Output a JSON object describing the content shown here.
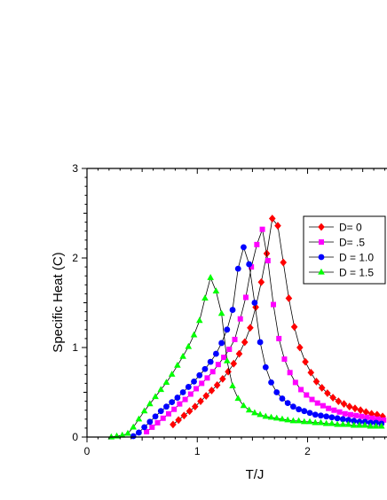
{
  "chart_data": {
    "type": "line",
    "title": "",
    "xlabel": "T/J",
    "ylabel": "Specific Heat (C)",
    "xlim": [
      0,
      2.72
    ],
    "ylim": [
      0,
      3
    ],
    "xticks": [
      0,
      1,
      2
    ],
    "xtick_labels": [
      "0",
      "1",
      "2"
    ],
    "yticks": [
      0,
      1,
      2,
      3
    ],
    "ytick_labels": [
      "0",
      "1",
      "2",
      "3"
    ],
    "grid": false,
    "legend_position": "upper-right",
    "series": [
      {
        "name": "D= 0",
        "color": "#ff0000",
        "marker": "diamond",
        "x": [
          0.78,
          0.83,
          0.88,
          0.93,
          0.98,
          1.03,
          1.08,
          1.13,
          1.18,
          1.23,
          1.28,
          1.33,
          1.38,
          1.43,
          1.48,
          1.53,
          1.58,
          1.63,
          1.68,
          1.73,
          1.78,
          1.83,
          1.88,
          1.93,
          1.98,
          2.03,
          2.08,
          2.13,
          2.18,
          2.23,
          2.28,
          2.33,
          2.38,
          2.43,
          2.48,
          2.53,
          2.58,
          2.63,
          2.68
        ],
        "y": [
          0.14,
          0.19,
          0.24,
          0.29,
          0.34,
          0.4,
          0.46,
          0.52,
          0.58,
          0.65,
          0.73,
          0.82,
          0.93,
          1.06,
          1.22,
          1.45,
          1.73,
          2.05,
          2.44,
          2.36,
          1.95,
          1.55,
          1.23,
          1.0,
          0.84,
          0.72,
          0.62,
          0.55,
          0.49,
          0.44,
          0.4,
          0.37,
          0.34,
          0.32,
          0.3,
          0.28,
          0.26,
          0.25,
          0.23
        ]
      },
      {
        "name": "D= .5",
        "color": "#ff00ff",
        "marker": "square",
        "x": [
          0.54,
          0.59,
          0.64,
          0.69,
          0.74,
          0.79,
          0.84,
          0.89,
          0.94,
          0.99,
          1.04,
          1.09,
          1.14,
          1.19,
          1.24,
          1.29,
          1.34,
          1.39,
          1.44,
          1.49,
          1.54,
          1.59,
          1.64,
          1.69,
          1.74,
          1.79,
          1.84,
          1.89,
          1.94,
          1.99,
          2.04,
          2.09,
          2.14,
          2.19,
          2.24,
          2.29,
          2.34,
          2.39,
          2.44,
          2.49,
          2.54,
          2.59,
          2.64,
          2.69
        ],
        "y": [
          0.06,
          0.11,
          0.16,
          0.21,
          0.26,
          0.31,
          0.37,
          0.42,
          0.48,
          0.54,
          0.6,
          0.66,
          0.73,
          0.81,
          0.89,
          0.98,
          1.09,
          1.32,
          1.56,
          1.9,
          2.15,
          2.32,
          1.97,
          1.48,
          1.1,
          0.87,
          0.72,
          0.61,
          0.53,
          0.47,
          0.42,
          0.38,
          0.35,
          0.32,
          0.3,
          0.28,
          0.26,
          0.25,
          0.24,
          0.23,
          0.22,
          0.21,
          0.2,
          0.19
        ]
      },
      {
        "name": "D = 1.0",
        "color": "#0000ff",
        "marker": "circle",
        "x": [
          0.42,
          0.47,
          0.52,
          0.57,
          0.62,
          0.67,
          0.72,
          0.77,
          0.82,
          0.87,
          0.92,
          0.97,
          1.02,
          1.07,
          1.12,
          1.17,
          1.22,
          1.27,
          1.32,
          1.37,
          1.42,
          1.47,
          1.52,
          1.57,
          1.62,
          1.67,
          1.72,
          1.77,
          1.82,
          1.87,
          1.92,
          1.97,
          2.02,
          2.07,
          2.12,
          2.17,
          2.22,
          2.27,
          2.32,
          2.37,
          2.42,
          2.47,
          2.52,
          2.57,
          2.62,
          2.67
        ],
        "y": [
          0.01,
          0.05,
          0.11,
          0.17,
          0.23,
          0.29,
          0.34,
          0.39,
          0.44,
          0.5,
          0.56,
          0.62,
          0.69,
          0.76,
          0.84,
          0.93,
          1.05,
          1.2,
          1.42,
          1.88,
          2.12,
          1.93,
          1.5,
          1.06,
          0.78,
          0.61,
          0.5,
          0.43,
          0.38,
          0.34,
          0.31,
          0.29,
          0.27,
          0.25,
          0.24,
          0.23,
          0.22,
          0.21,
          0.2,
          0.19,
          0.18,
          0.17,
          0.17,
          0.16,
          0.16,
          0.15
        ]
      },
      {
        "name": "D = 1.5",
        "color": "#00ff00",
        "marker": "triangle",
        "x": [
          0.22,
          0.27,
          0.32,
          0.37,
          0.42,
          0.47,
          0.52,
          0.57,
          0.62,
          0.67,
          0.72,
          0.77,
          0.82,
          0.87,
          0.92,
          0.97,
          1.02,
          1.07,
          1.12,
          1.17,
          1.22,
          1.27,
          1.32,
          1.37,
          1.42,
          1.47,
          1.52,
          1.57,
          1.62,
          1.67,
          1.72,
          1.77,
          1.82,
          1.87,
          1.92,
          1.97,
          2.02,
          2.07,
          2.12,
          2.17,
          2.22,
          2.27,
          2.32,
          2.37,
          2.42,
          2.47,
          2.52,
          2.57,
          2.62,
          2.67
        ],
        "y": [
          0.0,
          0.01,
          0.02,
          0.04,
          0.11,
          0.2,
          0.29,
          0.37,
          0.45,
          0.53,
          0.61,
          0.7,
          0.8,
          0.9,
          1.01,
          1.14,
          1.3,
          1.55,
          1.78,
          1.63,
          1.38,
          0.85,
          0.57,
          0.43,
          0.35,
          0.3,
          0.27,
          0.25,
          0.23,
          0.22,
          0.21,
          0.2,
          0.19,
          0.18,
          0.18,
          0.17,
          0.17,
          0.16,
          0.16,
          0.15,
          0.15,
          0.14,
          0.14,
          0.14,
          0.13,
          0.13,
          0.13,
          0.12,
          0.12,
          0.12
        ]
      }
    ]
  }
}
